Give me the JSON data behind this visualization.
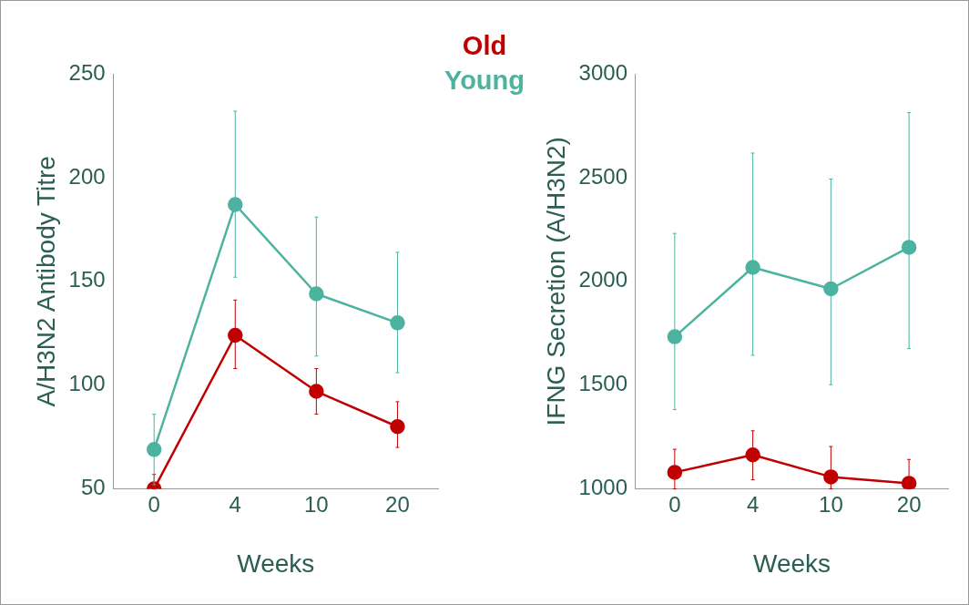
{
  "chart_data": [
    {
      "type": "line",
      "xlabel": "Weeks",
      "ylabel": "A/H3N2 Antibody Titre",
      "categories": [
        "0",
        "4",
        "10",
        "20"
      ],
      "ylim": [
        50,
        250
      ],
      "yticks": [
        50,
        100,
        150,
        200,
        250
      ],
      "marker": "circle",
      "legend": "top",
      "series": [
        {
          "name": "Old",
          "color": "#c00000",
          "values": [
            50,
            124,
            97,
            80
          ],
          "errors": [
            [
              50,
              57
            ],
            [
              108,
              141
            ],
            [
              86,
              108
            ],
            [
              70,
              92
            ]
          ]
        },
        {
          "name": "Young",
          "color": "#4bb3a0",
          "values": [
            69,
            187,
            144,
            130
          ],
          "errors": [
            [
              52,
              86
            ],
            [
              152,
              232
            ],
            [
              114,
              181
            ],
            [
              106,
              164
            ]
          ]
        }
      ]
    },
    {
      "type": "line",
      "xlabel": "Weeks",
      "ylabel": "IFNG Secretion (A/H3N2)",
      "categories": [
        "0",
        "4",
        "10",
        "20"
      ],
      "ylim": [
        1000,
        3000
      ],
      "yticks": [
        1000,
        1500,
        2000,
        2500,
        3000
      ],
      "marker": "circle",
      "series": [
        {
          "color": "#c00000",
          "values": [
            1080,
            1164,
            1058,
            1027
          ],
          "errors": [
            [
              1000,
              1191
            ],
            [
              1044,
              1280
            ],
            [
              1000,
              1204
            ],
            [
              1000,
              1142
            ]
          ]
        },
        {
          "color": "#4bb3a0",
          "values": [
            1733,
            2067,
            1964,
            2164
          ],
          "errors": [
            [
              1382,
              2231
            ],
            [
              1644,
              2618
            ],
            [
              1502,
              2493
            ],
            [
              1676,
              2813
            ]
          ]
        }
      ]
    }
  ]
}
